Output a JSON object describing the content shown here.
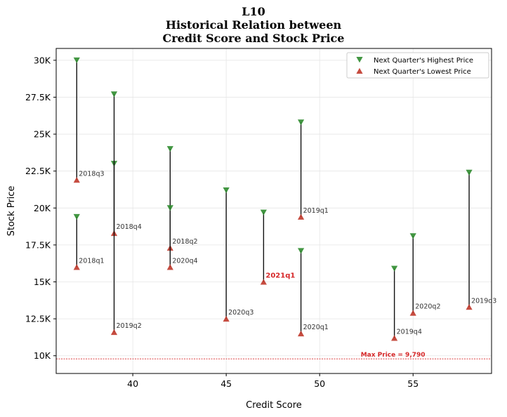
{
  "chart_data": {
    "type": "scatter",
    "title_lines": [
      "L10",
      "Historical Relation between",
      "Credit Score and Stock Price"
    ],
    "xlabel": "Credit Score",
    "ylabel": "Stock Price",
    "xlim": [
      35.9,
      59.2
    ],
    "ylim": [
      8800,
      30800
    ],
    "x_ticks": [
      40,
      45,
      50,
      55
    ],
    "x_tick_labels": [
      "40",
      "45",
      "50",
      "55"
    ],
    "y_ticks": [
      10000,
      12500,
      15000,
      17500,
      20000,
      22500,
      25000,
      27500,
      30000
    ],
    "y_tick_labels": [
      "10K",
      "12.5K",
      "15K",
      "17.5K",
      "20K",
      "22.5K",
      "25K",
      "27.5K",
      "30K"
    ],
    "grid": true,
    "legend_position": "top-right",
    "series": [
      {
        "name": "Next Quarter's Highest Price",
        "marker": "triangle-down",
        "color": "#2e8b2e"
      },
      {
        "name": "Next Quarter's Lowest Price",
        "marker": "triangle-up",
        "color": "#c0392b"
      }
    ],
    "points": [
      {
        "label": "2018q1",
        "x": 37,
        "high": 19400,
        "low": 16000
      },
      {
        "label": "2018q3",
        "x": 37,
        "high": 30000,
        "low": 21900
      },
      {
        "label": "2018q4",
        "x": 39,
        "high": 23000,
        "low": 18300
      },
      {
        "label": "2019q2",
        "x": 39,
        "high": 27700,
        "low": 11600
      },
      {
        "label": "2018q2",
        "x": 42,
        "high": 24000,
        "low": 17300
      },
      {
        "label": "2020q4",
        "x": 42,
        "high": 20000,
        "low": 16000
      },
      {
        "label": "2020q3",
        "x": 45,
        "high": 21200,
        "low": 12500
      },
      {
        "label": "2021q1",
        "x": 47,
        "high": 19700,
        "low": 15000,
        "highlight": true
      },
      {
        "label": "2019q1",
        "x": 49,
        "high": 25800,
        "low": 19400
      },
      {
        "label": "2020q1",
        "x": 49,
        "high": 17100,
        "low": 11500
      },
      {
        "label": "2019q4",
        "x": 54,
        "high": 15900,
        "low": 11200
      },
      {
        "label": "2020q2",
        "x": 55,
        "high": 18100,
        "low": 12900
      },
      {
        "label": "2019q3",
        "x": 58,
        "high": 22400,
        "low": 13300
      }
    ],
    "reference_line": {
      "y": 9790,
      "label": "Max Price = 9,790",
      "color": "#d62728"
    }
  }
}
